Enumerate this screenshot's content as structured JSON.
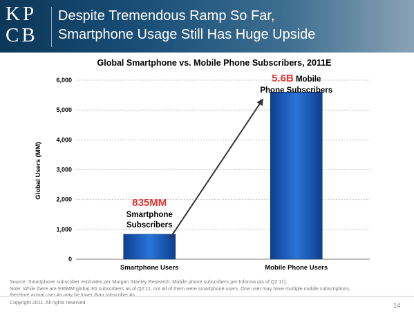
{
  "header": {
    "logo_top": "KP",
    "logo_bottom": "CB",
    "title_line1": "Despite Tremendous Ramp So Far,",
    "title_line2": "Smartphone Usage Still Has Huge Upside"
  },
  "chart_data": {
    "type": "bar",
    "title": "Global Smartphone vs. Mobile Phone Subscribers, 2011E",
    "categories": [
      "Smartphone Users",
      "Mobile Phone Users"
    ],
    "values": [
      835,
      5600
    ],
    "ylabel": "Global Users (MM)",
    "xlabel": "",
    "ylim": [
      0,
      6000
    ],
    "yticks": [
      0,
      1000,
      2000,
      3000,
      4000,
      5000,
      6000
    ],
    "ytick_labels": [
      "0",
      "1,000",
      "2,000",
      "3,000",
      "4,000",
      "5,000",
      "6,000"
    ],
    "grid": true,
    "bar_color": "#1a5fc4",
    "annotations": [
      {
        "highlight": "835MM",
        "line1": "Smartphone",
        "line2": "Subscribers"
      },
      {
        "highlight": "5.6B",
        "line1": "Mobile",
        "line2": "Phone Subscribers"
      }
    ],
    "highlight_color": "#e3342f"
  },
  "footnote": {
    "source": "Source: Smartphone subscriber estimates per Morgan Stanley Research; Mobile phone subscribers per Informa (as of Q2:11).",
    "note_line1": "Note: While there are 936MM global 3G subscribers as of Q2:11, not all of them were smartphone users. One user may have multiple mobile subscriptions,",
    "note_line2": "therefore actual user #s may be lower than subscriber #s."
  },
  "copyright": "Copyright 2011. All rights reserved.",
  "page_number": "14"
}
